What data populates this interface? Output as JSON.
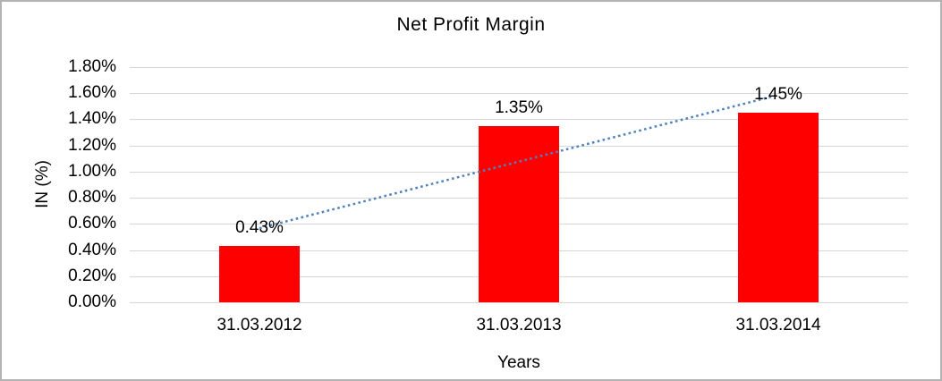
{
  "chart_data": {
    "type": "bar",
    "title": "Net Profit Margin",
    "categories": [
      "31.03.2012",
      "31.03.2013",
      "31.03.2014"
    ],
    "values": [
      0.43,
      1.35,
      1.45
    ],
    "data_labels": [
      "0.43%",
      "1.35%",
      "1.45%"
    ],
    "xlabel": "Years",
    "ylabel": "IN (%)",
    "ylim": [
      0,
      1.8
    ],
    "ytick_step": 0.2,
    "ytick_labels": [
      "0.00%",
      "0.20%",
      "0.40%",
      "0.60%",
      "0.80%",
      "1.00%",
      "1.20%",
      "1.40%",
      "1.60%",
      "1.80%"
    ],
    "grid": true,
    "legend": "none",
    "bar_color": "#FF0000",
    "trendline": {
      "type": "linear",
      "style": "dotted",
      "color": "#4F81BD"
    },
    "colors": {
      "gridline": "#D6D6D6",
      "text": "#000000",
      "background": "#FFFFFF",
      "border": "#B3B3B3"
    }
  }
}
